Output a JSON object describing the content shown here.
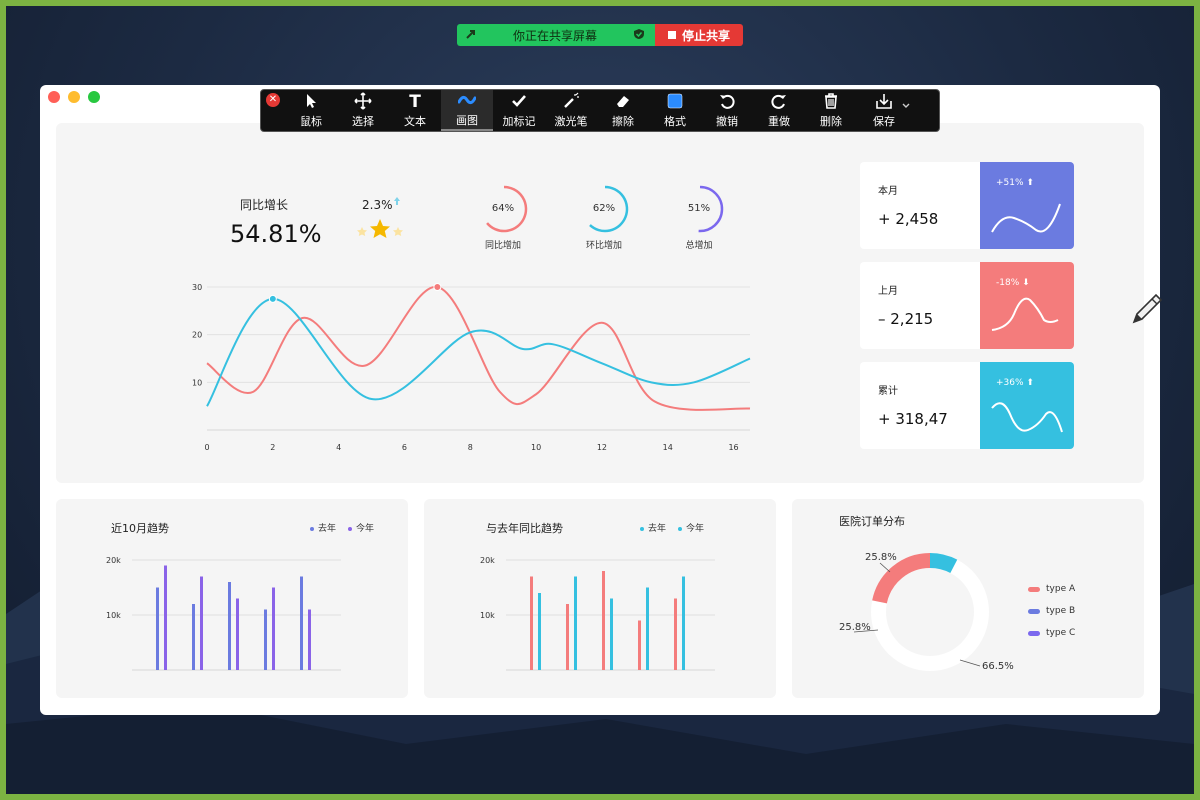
{
  "share_bar": {
    "status": "你正在共享屏幕",
    "stop": "停止共享"
  },
  "toolbar": {
    "tools": [
      {
        "label": "鼠标",
        "icon": "cursor-icon"
      },
      {
        "label": "选择",
        "icon": "move-icon"
      },
      {
        "label": "文本",
        "icon": "text-icon"
      },
      {
        "label": "画图",
        "icon": "draw-icon",
        "active": true
      },
      {
        "label": "加标记",
        "icon": "checkmark-icon"
      },
      {
        "label": "激光笔",
        "icon": "laser-pointer-icon"
      },
      {
        "label": "擦除",
        "icon": "eraser-icon"
      },
      {
        "label": "格式",
        "icon": "format-icon",
        "color": "#2b8cff"
      },
      {
        "label": "撤销",
        "icon": "undo-icon"
      },
      {
        "label": "重做",
        "icon": "redo-icon"
      },
      {
        "label": "删除",
        "icon": "trash-icon"
      },
      {
        "label": "保存",
        "icon": "save-icon"
      }
    ]
  },
  "top_panel": {
    "kpi_label": "同比增长",
    "kpi_value": "54.81%",
    "small_pct": "2.3%",
    "rings": [
      {
        "value": "64%",
        "label": "同比增加",
        "color": "#f47c7c",
        "fraction": 0.64
      },
      {
        "value": "62%",
        "label": "环比增加",
        "color": "#35c0e0",
        "fraction": 0.62
      },
      {
        "value": "51%",
        "label": "总增加",
        "color": "#7b68ee",
        "fraction": 0.51
      }
    ]
  },
  "stat_cards": [
    {
      "label": "本月",
      "value": "+ 2,458",
      "pct": "+51%",
      "color": "#6b7be0"
    },
    {
      "label": "上月",
      "value": "– 2,215",
      "pct": "-18%",
      "color": "#f47c7c"
    },
    {
      "label": "累计",
      "value": "+ 318,47",
      "pct": "+36%",
      "color": "#35c0e0"
    }
  ],
  "bottom": {
    "b1_title": "近10月趋势",
    "b2_title": "与去年同比趋势",
    "b3_title": "医院订单分布",
    "legend_last_year": "去年",
    "legend_this_year": "今年"
  },
  "colors": {
    "red": "#f47c7c",
    "cyan": "#35c0e0",
    "blue": "#6b7be0",
    "purple": "#8a63e8"
  },
  "chart_data": [
    {
      "type": "line",
      "x_ticks": [
        0,
        2,
        4,
        6,
        8,
        10,
        12,
        14,
        16
      ],
      "y_ticks": [
        10,
        20,
        30
      ],
      "xlim": [
        0,
        16.5
      ],
      "ylim": [
        0,
        30
      ],
      "grid": true,
      "series": [
        {
          "color": "#f47c7c",
          "x": [
            0,
            1.4,
            2.9,
            4.8,
            7.0,
            8.9,
            10.0,
            12.0,
            13.6,
            16.5
          ],
          "y": [
            14,
            8,
            23.5,
            13.5,
            30,
            8,
            7.5,
            22.5,
            6,
            4.5
          ]
        },
        {
          "color": "#35c0e0",
          "x": [
            0,
            2.0,
            5.0,
            8.0,
            9.6,
            10.5,
            12.0,
            13.5,
            14.8,
            16.5
          ],
          "y": [
            5,
            27.5,
            6.5,
            20.5,
            17,
            18,
            14,
            10,
            10,
            15
          ]
        }
      ]
    },
    {
      "type": "bar",
      "title": "近10月趋势",
      "y_ticks": [
        "10k",
        "20k"
      ],
      "ylim": [
        0,
        20
      ],
      "series": [
        {
          "name": "去年",
          "color": "#6b7be0",
          "values": [
            15,
            12,
            16,
            11,
            17
          ]
        },
        {
          "name": "今年",
          "color": "#8a63e8",
          "values": [
            19,
            17,
            13,
            15,
            11
          ]
        }
      ]
    },
    {
      "type": "bar",
      "title": "与去年同比趋势",
      "y_ticks": [
        "10k",
        "20k"
      ],
      "ylim": [
        0,
        20
      ],
      "series": [
        {
          "name": "去年",
          "color": "#f47c7c",
          "values": [
            17,
            12,
            18,
            9,
            13
          ]
        },
        {
          "name": "今年",
          "color": "#35c0e0",
          "values": [
            14,
            17,
            13,
            15,
            17
          ]
        }
      ]
    },
    {
      "type": "pie",
      "title": "医院订单分布",
      "labels": [
        "type A",
        "type B",
        "type C"
      ],
      "values": [
        25.8,
        25.8,
        66.5
      ],
      "value_labels": [
        "25.8%",
        "25.8%",
        "66.5%"
      ],
      "colors": [
        "#f47c7c",
        "#35c0e0",
        "#ffffff"
      ],
      "legend_colors": [
        "#f47c7c",
        "#6b7be0",
        "#7b68ee"
      ]
    }
  ]
}
